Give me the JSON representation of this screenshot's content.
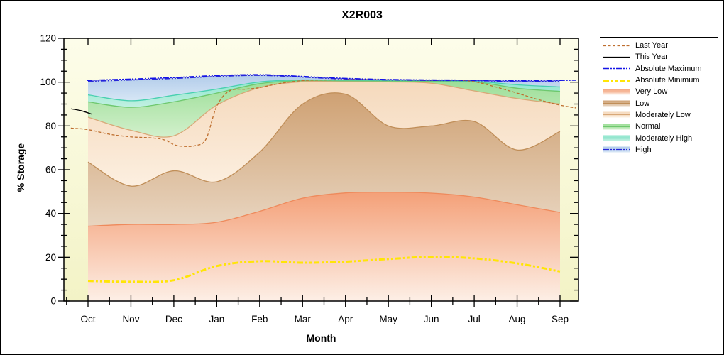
{
  "title": "X2R003",
  "y_axis": {
    "label": "% Storage",
    "min": 0,
    "max": 120,
    "major_tick_step": 20,
    "minor_tick_step": 5,
    "tick_labels": [
      "0",
      "20",
      "40",
      "60",
      "80",
      "100",
      "120"
    ]
  },
  "x_axis": {
    "label": "Month",
    "categories": [
      "Oct",
      "Nov",
      "Dec",
      "Jan",
      "Feb",
      "Mar",
      "Apr",
      "May",
      "Jun",
      "Jul",
      "Aug",
      "Sep"
    ]
  },
  "legend": {
    "items": [
      {
        "label": "Last Year",
        "kind": "line",
        "style": "dashed",
        "color": "#BE6E2E"
      },
      {
        "label": "This Year",
        "kind": "line",
        "style": "solid",
        "color": "#000000"
      },
      {
        "label": "Absolute Maximum",
        "kind": "line",
        "style": "dashdot",
        "color": "#1414E6"
      },
      {
        "label": "Absolute Minimum",
        "kind": "line",
        "style": "dashdot-thick",
        "color": "#FFE506"
      },
      {
        "label": "Very Low",
        "kind": "band",
        "fill_top": "#F4A078",
        "fill_bottom": "#FDEFE6",
        "edge": "#EE8A5C"
      },
      {
        "label": "Low",
        "kind": "band",
        "fill_top": "#CFA173",
        "fill_bottom": "#E8D5C0",
        "edge": "#C08E58"
      },
      {
        "label": "Moderately Low",
        "kind": "band",
        "fill_top": "#F5D9BC",
        "fill_bottom": "#FCEFE0",
        "edge": "#D8A878"
      },
      {
        "label": "Normal",
        "kind": "band",
        "fill_top": "#9CDE97",
        "fill_bottom": "#D2F0CC",
        "edge": "#6EC86E"
      },
      {
        "label": "Moderately High",
        "kind": "band",
        "fill_top": "#8CE6CC",
        "fill_bottom": "#C2F0E2",
        "edge": "#48D0B0"
      },
      {
        "label": "High",
        "kind": "band",
        "fill_top": "#B2CCEA",
        "fill_bottom": "#D6E6F5",
        "edge": "#2828D8",
        "edge_style": "dashdot"
      }
    ]
  },
  "chart_data": {
    "type": "area",
    "title": "X2R003",
    "xlabel": "Month",
    "ylabel": "% Storage",
    "ylim": [
      0,
      120
    ],
    "grid": false,
    "legend_position": "right",
    "categories": [
      "Oct",
      "Nov",
      "Dec",
      "Jan",
      "Feb",
      "Mar",
      "Apr",
      "May",
      "Jun",
      "Jul",
      "Aug",
      "Sep"
    ],
    "bands": [
      {
        "name": "Very Low",
        "lower_base": 0,
        "upper": [
          34.2,
          35,
          35,
          36,
          41,
          47,
          49.4,
          49.7,
          49.3,
          47.5,
          44,
          40.5
        ]
      },
      {
        "name": "Low",
        "upper": [
          63.5,
          52.5,
          59.5,
          54.5,
          68,
          90,
          94.5,
          80,
          80,
          82,
          69,
          77.5
        ]
      },
      {
        "name": "Moderately Low",
        "upper": [
          84,
          78,
          75.5,
          89.5,
          97.5,
          100.2,
          100.2,
          100.1,
          99.5,
          96,
          92.5,
          90
        ]
      },
      {
        "name": "Normal",
        "upper": [
          91,
          88.5,
          91,
          95,
          99.3,
          100.7,
          100.6,
          100.5,
          100.4,
          100.2,
          97.2,
          95.8
        ]
      },
      {
        "name": "Moderately High",
        "upper": [
          94.2,
          91.5,
          94,
          96.8,
          100.1,
          101,
          100.9,
          100.8,
          100.7,
          100.4,
          98.8,
          97.8
        ]
      },
      {
        "name": "High",
        "upper": [
          100.4,
          101,
          101.7,
          102.6,
          103.1,
          102.3,
          101.4,
          101,
          100.8,
          100.7,
          100.3,
          100.5
        ]
      }
    ],
    "lines": [
      {
        "name": "Last Year",
        "points": [
          [
            -0.4,
            79
          ],
          [
            0,
            78.3
          ],
          [
            0.5,
            76.2
          ],
          [
            1,
            75
          ],
          [
            1.5,
            74.5
          ],
          [
            1.8,
            73.5
          ],
          [
            2,
            71.5
          ],
          [
            2.2,
            70.7
          ],
          [
            2.5,
            71
          ],
          [
            2.75,
            74
          ],
          [
            3,
            89
          ],
          [
            3.3,
            96
          ],
          [
            3.7,
            96.8
          ],
          [
            4,
            97.5
          ],
          [
            4.5,
            99.5
          ],
          [
            5,
            100.7
          ],
          [
            5.5,
            101
          ],
          [
            6.5,
            101.1
          ],
          [
            7.5,
            101
          ],
          [
            8.5,
            100.9
          ],
          [
            9,
            100.2
          ],
          [
            9.5,
            97.8
          ],
          [
            10,
            95
          ],
          [
            10.5,
            92
          ],
          [
            11,
            89.5
          ],
          [
            11.38,
            88.2
          ]
        ]
      },
      {
        "name": "This Year",
        "points": [
          [
            -0.397,
            87.8
          ],
          [
            -0.15,
            86.9
          ],
          [
            0.099,
            85.3
          ]
        ]
      },
      {
        "name": "Absolute Maximum",
        "points": [
          [
            -0.033,
            100.8
          ],
          [
            1,
            101.4
          ],
          [
            2,
            102.1
          ],
          [
            3,
            103
          ],
          [
            4,
            103.4
          ],
          [
            5,
            102.6
          ],
          [
            6,
            101.7
          ],
          [
            7,
            101.2
          ],
          [
            8,
            101
          ],
          [
            9,
            100.9
          ],
          [
            10,
            100.6
          ],
          [
            11,
            100.8
          ],
          [
            11.38,
            100.9
          ]
        ]
      },
      {
        "name": "Absolute Minimum",
        "points": [
          [
            0,
            9.2
          ],
          [
            1,
            8.8
          ],
          [
            2,
            9.5
          ],
          [
            3,
            16
          ],
          [
            4,
            18.2
          ],
          [
            5,
            17.5
          ],
          [
            6,
            18
          ],
          [
            7,
            19.2
          ],
          [
            8,
            20.2
          ],
          [
            9,
            19.5
          ],
          [
            10,
            17.2
          ],
          [
            11,
            13.5
          ]
        ]
      }
    ],
    "plot_background": {
      "top_color": "#FDFDEA",
      "bottom_color": "#F3F3C6"
    }
  }
}
